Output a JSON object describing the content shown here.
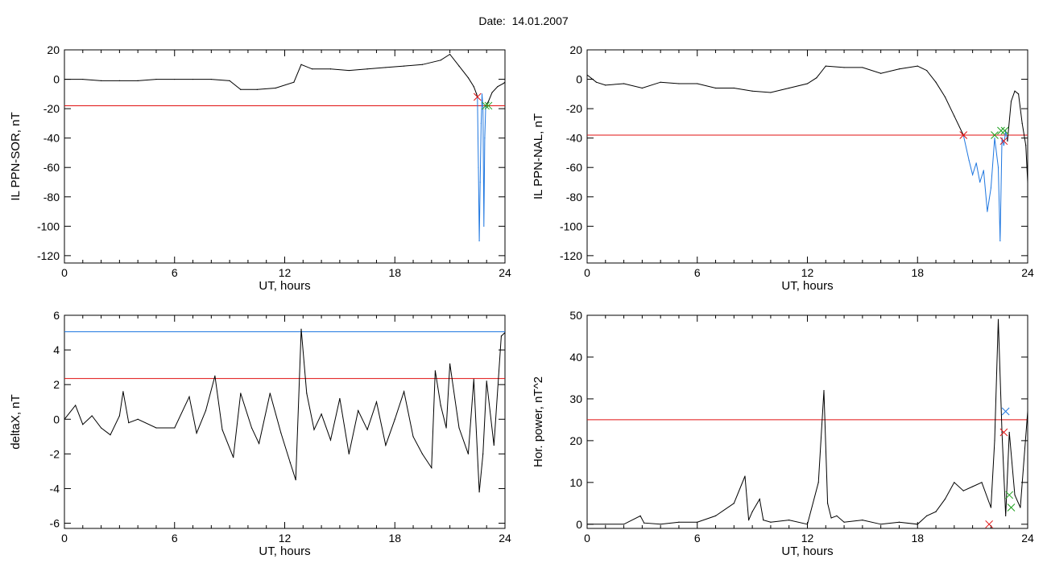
{
  "figure": {
    "title": "Date:  14.01.2007"
  },
  "chart_data": [
    {
      "type": "line",
      "xlabel": "UT, hours",
      "ylabel": "IL PPN-SOR, nT",
      "xlim": [
        0,
        24
      ],
      "ylim": [
        -125,
        20
      ],
      "xticks": [
        0,
        6,
        12,
        18,
        24
      ],
      "yticks": [
        20,
        0,
        -20,
        -40,
        -60,
        -80,
        -100,
        -120
      ],
      "series": [
        {
          "color": "#000000",
          "x": [
            0,
            1,
            2,
            3,
            4,
            5,
            6,
            7,
            8,
            9,
            9.6,
            10.5,
            11.5,
            12.5,
            12.9,
            13.5,
            14.5,
            15.5,
            16.5,
            17.5,
            18.5,
            19.5,
            20.5,
            21,
            21.5,
            22,
            22.3,
            22.45,
            22.5
          ],
          "y": [
            0,
            0,
            -1,
            -1,
            -1,
            0,
            0,
            0,
            0,
            -1,
            -7,
            -7,
            -6,
            -2,
            10,
            7,
            7,
            6,
            7,
            8,
            9,
            10,
            13,
            17,
            9,
            1,
            -5,
            -10,
            -12
          ]
        },
        {
          "color": "#1f77e0",
          "x": [
            22.5,
            22.55,
            22.6,
            22.65,
            22.7,
            22.75,
            22.8,
            22.85,
            22.9,
            22.95
          ],
          "y": [
            -12,
            -60,
            -110,
            -70,
            -30,
            -10,
            -20,
            -100,
            -40,
            -18
          ]
        },
        {
          "color": "#000000",
          "x": [
            22.95,
            23.1,
            23.3,
            23.6,
            23.9,
            24
          ],
          "y": [
            -18,
            -15,
            -9,
            -5,
            -3,
            -2
          ]
        }
      ],
      "hlines": [
        {
          "y": -18,
          "color": "#e01010"
        }
      ],
      "markers": [
        {
          "x": 22.5,
          "y": -12,
          "color": "#e01010"
        },
        {
          "x": 22.95,
          "y": -18,
          "color": "#1fa01f"
        },
        {
          "x": 23.1,
          "y": -18,
          "color": "#1fa01f"
        }
      ]
    },
    {
      "type": "line",
      "xlabel": "UT, hours",
      "ylabel": "IL PPN-NAL, nT",
      "xlim": [
        0,
        24
      ],
      "ylim": [
        -125,
        20
      ],
      "xticks": [
        0,
        6,
        12,
        18,
        24
      ],
      "yticks": [
        20,
        0,
        -20,
        -40,
        -60,
        -80,
        -100,
        -120
      ],
      "series": [
        {
          "color": "#000000",
          "x": [
            0,
            0.5,
            1,
            2,
            3,
            4,
            5,
            6,
            7,
            8,
            9,
            10,
            11,
            12,
            12.5,
            13,
            14,
            15,
            16,
            17,
            18,
            18.5,
            19,
            19.5,
            20,
            20.5
          ],
          "y": [
            3,
            -2,
            -4,
            -3,
            -6,
            -2,
            -3,
            -3,
            -6,
            -6,
            -8,
            -9,
            -6,
            -3,
            1,
            9,
            8,
            8,
            4,
            7,
            9,
            6,
            -2,
            -12,
            -25,
            -38
          ]
        },
        {
          "color": "#1f77e0",
          "x": [
            20.5,
            20.8,
            21,
            21.2,
            21.4,
            21.6,
            21.8,
            22,
            22.2,
            22.4,
            22.5,
            22.6,
            22.7,
            22.8,
            22.9
          ],
          "y": [
            -38,
            -55,
            -65,
            -57,
            -70,
            -62,
            -90,
            -74,
            -40,
            -60,
            -110,
            -40,
            -45,
            -35,
            -42
          ]
        },
        {
          "color": "#000000",
          "x": [
            22.9,
            23.1,
            23.3,
            23.5,
            23.7,
            23.9,
            24
          ],
          "y": [
            -42,
            -15,
            -8,
            -10,
            -30,
            -45,
            -70
          ]
        }
      ],
      "hlines": [
        {
          "y": -38,
          "color": "#e01010"
        }
      ],
      "markers": [
        {
          "x": 20.5,
          "y": -38,
          "color": "#e01010"
        },
        {
          "x": 22.2,
          "y": -38,
          "color": "#1fa01f"
        },
        {
          "x": 22.55,
          "y": -35,
          "color": "#1fa01f"
        },
        {
          "x": 22.75,
          "y": -35,
          "color": "#1fa01f"
        },
        {
          "x": 22.7,
          "y": -42,
          "color": "#e01010"
        }
      ]
    },
    {
      "type": "line",
      "xlabel": "UT, hours",
      "ylabel": "deltaX, nT",
      "xlim": [
        0,
        24
      ],
      "ylim": [
        -6.3,
        6
      ],
      "xticks": [
        0,
        6,
        12,
        18,
        24
      ],
      "yticks": [
        6,
        4,
        2,
        0,
        -2,
        -4,
        -6
      ],
      "series": [
        {
          "color": "#000000",
          "x": [
            0,
            0.6,
            1,
            1.5,
            2,
            2.5,
            3,
            3.2,
            3.5,
            4,
            5,
            6,
            6.8,
            7.2,
            7.7,
            8.2,
            8.6,
            9.2,
            9.6,
            10.2,
            10.6,
            11.2,
            11.8,
            12.3,
            12.6,
            12.9,
            13.2,
            13.6,
            14,
            14.5,
            15,
            15.5,
            16,
            16.5,
            17,
            17.5,
            18,
            18.5,
            19,
            19.5,
            20,
            20.2,
            20.5,
            20.8,
            21,
            21.5,
            22,
            22.3,
            22.6,
            22.8,
            23,
            23.4,
            23.8,
            24
          ],
          "y": [
            0,
            0.8,
            -0.3,
            0.2,
            -0.5,
            -0.9,
            0.2,
            1.6,
            -0.2,
            0,
            -0.5,
            -0.5,
            1.3,
            -0.8,
            0.5,
            2.5,
            -0.6,
            -2.2,
            1.5,
            -0.5,
            -1.4,
            1.5,
            -0.8,
            -2.5,
            -3.5,
            5.2,
            1.5,
            -0.6,
            0.3,
            -1.2,
            1.2,
            -2,
            0.5,
            -0.6,
            1,
            -1.5,
            0,
            1.6,
            -1,
            -2,
            -2.8,
            2.8,
            0.8,
            -0.5,
            3.2,
            -0.5,
            -2,
            2.3,
            -4.2,
            -2,
            2.2,
            -1.5,
            4.8,
            5
          ]
        }
      ],
      "hlines": [
        {
          "y": 5.05,
          "color": "#1f77e0"
        },
        {
          "y": 2.35,
          "color": "#e01010"
        }
      ],
      "markers": []
    },
    {
      "type": "line",
      "xlabel": "UT, hours",
      "ylabel": "Hor. power, nT^2",
      "xlim": [
        0,
        24
      ],
      "ylim": [
        -1,
        50
      ],
      "xticks": [
        0,
        6,
        12,
        18,
        24
      ],
      "yticks": [
        50,
        40,
        30,
        20,
        10,
        0
      ],
      "series": [
        {
          "color": "#000000",
          "x": [
            0,
            1,
            2,
            2.9,
            3.1,
            4,
            5,
            6,
            7,
            8,
            8.6,
            8.8,
            9,
            9.4,
            9.6,
            10,
            11,
            12,
            12.6,
            12.9,
            13.1,
            13.3,
            13.6,
            14,
            15,
            16,
            17,
            18,
            18.5,
            19,
            19.5,
            20,
            20.5,
            21,
            21.5,
            22,
            22.2,
            22.4,
            22.6,
            22.8,
            23,
            23.3,
            23.6,
            24
          ],
          "y": [
            0,
            0,
            0,
            2,
            0.3,
            0,
            0.5,
            0.5,
            2,
            5,
            11.5,
            1,
            3,
            6,
            1,
            0.5,
            1,
            0,
            10,
            32,
            5,
            1.5,
            2,
            0.5,
            1,
            0,
            0.5,
            0,
            2,
            3,
            6,
            10,
            8,
            9,
            10,
            4,
            20,
            49,
            22,
            2,
            22,
            7,
            4,
            27
          ]
        }
      ],
      "hlines": [
        {
          "y": 25,
          "color": "#e01010"
        }
      ],
      "markers": [
        {
          "x": 22.8,
          "y": 27,
          "color": "#1f77e0"
        },
        {
          "x": 22.7,
          "y": 22,
          "color": "#e01010"
        },
        {
          "x": 21.9,
          "y": 0,
          "color": "#e01010"
        },
        {
          "x": 23,
          "y": 7,
          "color": "#1fa01f"
        },
        {
          "x": 23.1,
          "y": 4,
          "color": "#1fa01f"
        }
      ]
    }
  ]
}
